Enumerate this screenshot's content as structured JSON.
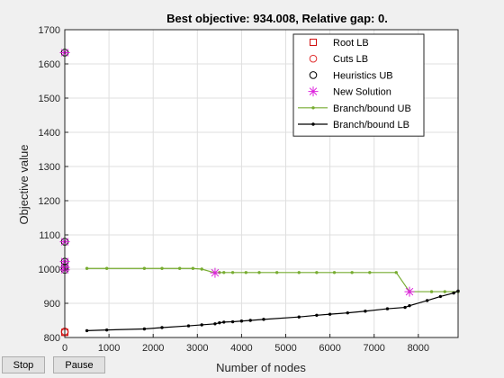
{
  "controls": {
    "stop_label": "Stop",
    "pause_label": "Pause"
  },
  "chart_data": {
    "type": "line",
    "title": "Best objective: 934.008, Relative gap: 0.",
    "xlabel": "Number of nodes",
    "ylabel": "Objective value",
    "xlim": [
      0,
      8900
    ],
    "ylim": [
      800,
      1700
    ],
    "xticks": [
      0,
      1000,
      2000,
      3000,
      4000,
      5000,
      6000,
      7000,
      8000
    ],
    "yticks": [
      800,
      900,
      1000,
      1100,
      1200,
      1300,
      1400,
      1500,
      1600,
      1700
    ],
    "grid": true,
    "legend_position": "top-right",
    "series": [
      {
        "name": "Root LB",
        "color": "#d01010",
        "marker": "square",
        "line": false,
        "x": [
          0
        ],
        "y": [
          815
        ]
      },
      {
        "name": "Cuts LB",
        "color": "#e03030",
        "marker": "circle",
        "line": false,
        "x": [
          0,
          0
        ],
        "y": [
          815,
          818
        ]
      },
      {
        "name": "Heuristics UB",
        "color": "#000000",
        "marker": "circle",
        "line": false,
        "x": [
          0,
          0,
          0,
          0,
          0
        ],
        "y": [
          1633,
          1080,
          1022,
          1005,
          998
        ]
      },
      {
        "name": "New Solution",
        "color": "#dd22dd",
        "marker": "star",
        "line": false,
        "x": [
          0,
          0,
          0,
          0,
          0,
          3400,
          7800
        ],
        "y": [
          1633,
          1080,
          1022,
          1005,
          998,
          989,
          934
        ]
      },
      {
        "name": "Branch/bound UB",
        "color": "#77ac30",
        "marker": "dot",
        "line": true,
        "x": [
          500,
          950,
          1800,
          2200,
          2600,
          2900,
          3100,
          3400,
          3500,
          3600,
          3800,
          4100,
          4400,
          4800,
          5300,
          5700,
          6100,
          6500,
          6900,
          7500,
          7800,
          8300,
          8600,
          8900
        ],
        "y": [
          1002,
          1002,
          1002,
          1002,
          1002,
          1002,
          1000,
          989,
          990,
          990,
          990,
          990,
          990,
          990,
          990,
          990,
          990,
          990,
          990,
          990,
          934,
          934,
          934,
          934
        ]
      },
      {
        "name": "Branch/bound LB",
        "color": "#000000",
        "marker": "dot",
        "line": true,
        "x": [
          500,
          950,
          1800,
          2200,
          2800,
          3100,
          3400,
          3500,
          3600,
          3800,
          4000,
          4200,
          4500,
          5300,
          5700,
          6000,
          6400,
          6800,
          7300,
          7700,
          7800,
          8200,
          8500,
          8800,
          8900
        ],
        "y": [
          820,
          822,
          825,
          829,
          834,
          837,
          840,
          843,
          845,
          846,
          848,
          850,
          853,
          860,
          865,
          868,
          872,
          877,
          884,
          888,
          893,
          908,
          920,
          930,
          936
        ]
      }
    ]
  }
}
